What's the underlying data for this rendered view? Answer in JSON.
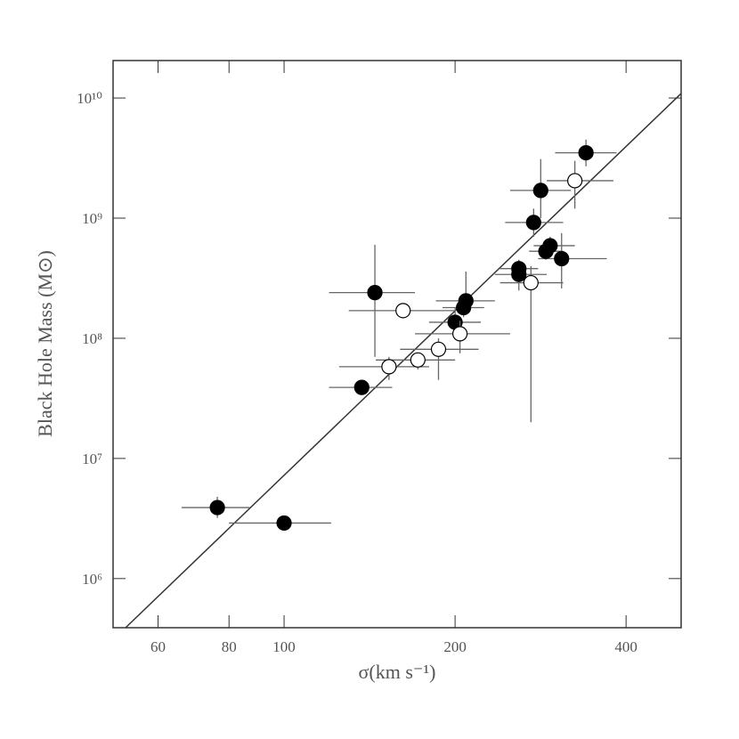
{
  "chart_data": {
    "type": "scatter",
    "xlabel": "σ(km s⁻¹)",
    "ylabel": "Black Hole Mass (M⊙)",
    "log_x": true,
    "log_y": true,
    "xlim": [
      50,
      500
    ],
    "ylim": [
      390000,
      20500000000
    ],
    "xticks": [
      60,
      80,
      100,
      200,
      400
    ],
    "yticks": [
      {
        "value": 1000000,
        "label": "10⁶"
      },
      {
        "value": 10000000,
        "label": "10⁷"
      },
      {
        "value": 100000000,
        "label": "10⁸"
      },
      {
        "value": 1000000000,
        "label": "10⁹"
      },
      {
        "value": 10000000000,
        "label": "10¹⁰"
      }
    ],
    "series": [
      {
        "color": "#000000",
        "fill": "#000000",
        "x": [
          76.3,
          100,
          137,
          144.5,
          200,
          207,
          209,
          259,
          259,
          275,
          283,
          289,
          294,
          308,
          340
        ],
        "values": [
          3900000,
          2900000,
          39000000,
          240000000,
          136000000,
          180000000,
          205000000,
          340000000,
          380000000,
          920000000,
          1700000000,
          530000000,
          590000000,
          460000000,
          3500000000
        ],
        "x_low": [
          66,
          80,
          120,
          120,
          180,
          190,
          185,
          235,
          240,
          245,
          250,
          270,
          275,
          280,
          300
        ],
        "x_high": [
          87,
          121,
          155,
          170,
          222,
          225,
          235,
          290,
          280,
          310,
          320,
          310,
          325,
          370,
          385
        ],
        "y_low": [
          3200000,
          2700000,
          35000000,
          70000000,
          100000000,
          150000000,
          170000000,
          250000000,
          300000000,
          700000000,
          1000000000,
          450000000,
          500000000,
          260000000,
          2700000000
        ],
        "y_high": [
          4800000,
          3100000,
          44000000,
          600000000,
          180000000,
          220000000,
          360000000,
          450000000,
          450000000,
          1200000000,
          3100000000,
          650000000,
          700000000,
          750000000,
          4500000000
        ]
      },
      {
        "color": "#000000",
        "fill": "#ffffff",
        "x": [
          153,
          162,
          172,
          187,
          204,
          272,
          325
        ],
        "values": [
          58000000,
          170000000,
          66000000,
          81000000,
          109000000,
          290000000,
          2050000000
        ],
        "x_low": [
          125,
          130,
          145,
          160,
          170,
          240,
          290
        ],
        "x_high": [
          180,
          200,
          200,
          220,
          250,
          310,
          380
        ],
        "y_low": [
          45000000,
          150000000,
          55000000,
          45000000,
          75000000,
          20000000,
          1200000000
        ],
        "y_high": [
          70000000,
          190000000,
          75000000,
          100000000,
          140000000,
          400000000,
          3000000000
        ]
      }
    ],
    "fit_line": {
      "color": "#333333",
      "x": [
        52.6,
        500
      ],
      "values": [
        390000,
        10900000000
      ]
    }
  }
}
